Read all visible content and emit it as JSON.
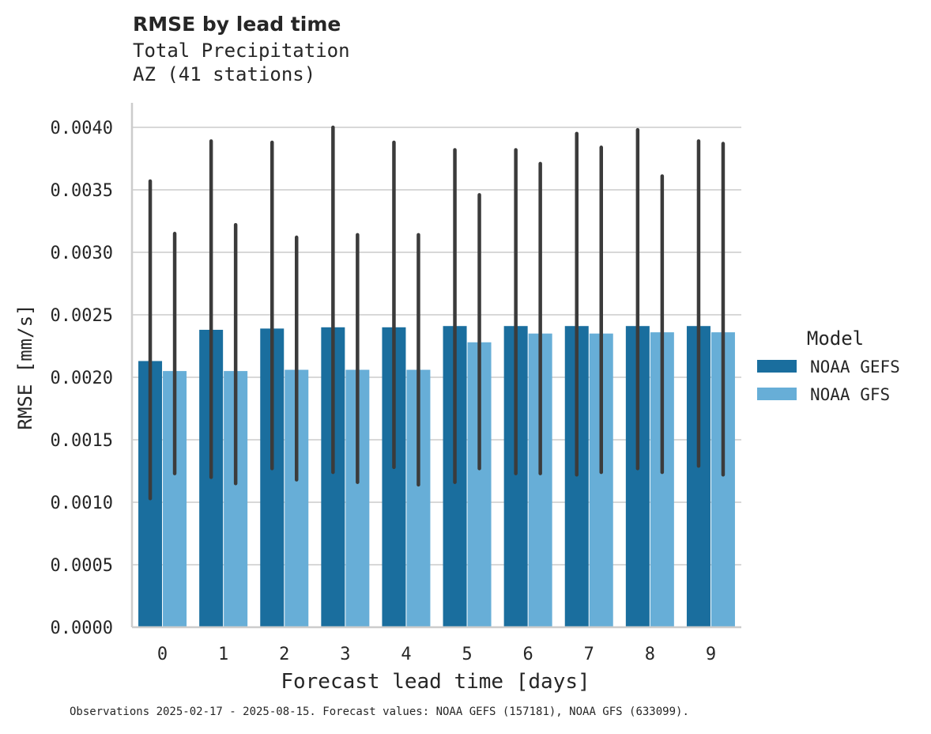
{
  "title": "RMSE by lead time",
  "subtitle_line1": "Total Precipitation",
  "subtitle_line2": "AZ (41 stations)",
  "footer": "Observations 2025-02-17 - 2025-08-15. Forecast values: NOAA GEFS (157181), NOAA GFS (633099).",
  "colors": {
    "NOAA GEFS": "#1a6e9e",
    "NOAA GFS": "#67aed7",
    "error_bar": "#3b3b3b",
    "grid": "#cccccc"
  },
  "chart_data": {
    "type": "bar",
    "xlabel": "Forecast lead time [days]",
    "ylabel": "RMSE [mm/s]",
    "ylim": [
      0,
      0.0042
    ],
    "yticks": [
      "0.0000",
      "0.0005",
      "0.0010",
      "0.0015",
      "0.0020",
      "0.0025",
      "0.0030",
      "0.0035",
      "0.0040"
    ],
    "ytick_values": [
      0,
      0.0005,
      0.001,
      0.0015,
      0.002,
      0.0025,
      0.003,
      0.0035,
      0.004
    ],
    "categories": [
      "0",
      "1",
      "2",
      "3",
      "4",
      "5",
      "6",
      "7",
      "8",
      "9"
    ],
    "grid": true,
    "legend_title": "Model",
    "legend_placement": "right",
    "series": [
      {
        "name": "NOAA GEFS",
        "values": [
          0.00213,
          0.00238,
          0.00239,
          0.0024,
          0.0024,
          0.00241,
          0.00241,
          0.00241,
          0.00241,
          0.00241
        ],
        "err_low": [
          0.00103,
          0.0012,
          0.00127,
          0.00124,
          0.00128,
          0.00116,
          0.00123,
          0.00122,
          0.00127,
          0.00129
        ],
        "err_high": [
          0.00357,
          0.00389,
          0.00388,
          0.004,
          0.00388,
          0.00382,
          0.00382,
          0.00395,
          0.00398,
          0.00389
        ]
      },
      {
        "name": "NOAA GFS",
        "values": [
          0.00205,
          0.00205,
          0.00206,
          0.00206,
          0.00206,
          0.00228,
          0.00235,
          0.00235,
          0.00236,
          0.00236
        ],
        "err_low": [
          0.00123,
          0.00115,
          0.00118,
          0.00116,
          0.00114,
          0.00127,
          0.00123,
          0.00124,
          0.00124,
          0.00122
        ],
        "err_high": [
          0.00315,
          0.00322,
          0.00312,
          0.00314,
          0.00314,
          0.00346,
          0.00371,
          0.00384,
          0.00361,
          0.00387
        ]
      }
    ]
  }
}
